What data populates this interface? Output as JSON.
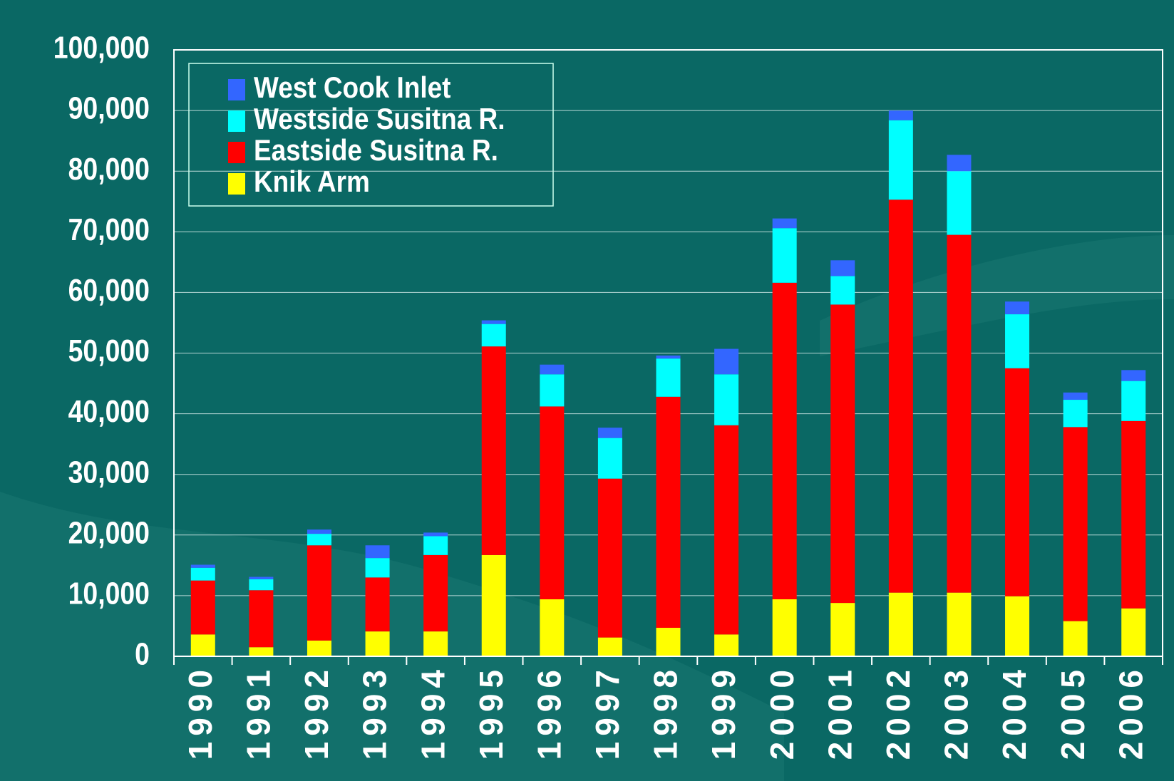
{
  "chart_data": {
    "type": "stacked-bar",
    "categories": [
      "1990",
      "1991",
      "1992",
      "1993",
      "1994",
      "1995",
      "1996",
      "1997",
      "1998",
      "1999",
      "2000",
      "2001",
      "2002",
      "2003",
      "2004",
      "2005",
      "2006"
    ],
    "series": [
      {
        "name": "Knik Arm",
        "color": "#ffff00",
        "values": [
          3600,
          1500,
          2600,
          4100,
          4100,
          16700,
          9400,
          3100,
          4700,
          3600,
          9400,
          8800,
          10500,
          10500,
          9900,
          5800,
          7900
        ]
      },
      {
        "name": "Eastside Susitna R.",
        "color": "#ff0000",
        "values": [
          8900,
          9400,
          15700,
          8900,
          12600,
          34400,
          31800,
          26200,
          38100,
          34500,
          52200,
          49200,
          64800,
          59000,
          37600,
          32000,
          30900
        ]
      },
      {
        "name": "Westside Susitna R.",
        "color": "#00ffff",
        "values": [
          2100,
          1800,
          1900,
          3200,
          3100,
          3700,
          5300,
          6700,
          6300,
          8400,
          9000,
          4700,
          13100,
          10500,
          8900,
          4500,
          6600
        ]
      },
      {
        "name": "West Cook Inlet",
        "color": "#3366ff",
        "values": [
          500,
          400,
          700,
          2100,
          600,
          600,
          1600,
          1700,
          500,
          4200,
          1600,
          2600,
          1600,
          2700,
          2100,
          1200,
          1800
        ]
      }
    ],
    "ylim": [
      0,
      100000
    ],
    "yticks": [
      0,
      {
        "value": 10000,
        "label": "10,000"
      },
      {
        "value": 20000,
        "label": "20,000"
      },
      {
        "value": 30000,
        "label": "30,000"
      },
      {
        "value": 40000,
        "label": "40,000"
      },
      {
        "value": 50000,
        "label": "50,000"
      },
      {
        "value": 60000,
        "label": "60,000"
      },
      {
        "value": 70000,
        "label": "70,000"
      },
      {
        "value": 80000,
        "label": "80,000"
      },
      {
        "value": 90000,
        "label": "90,000"
      },
      {
        "value": 100000,
        "label": "100,000"
      }
    ],
    "grid": true
  }
}
